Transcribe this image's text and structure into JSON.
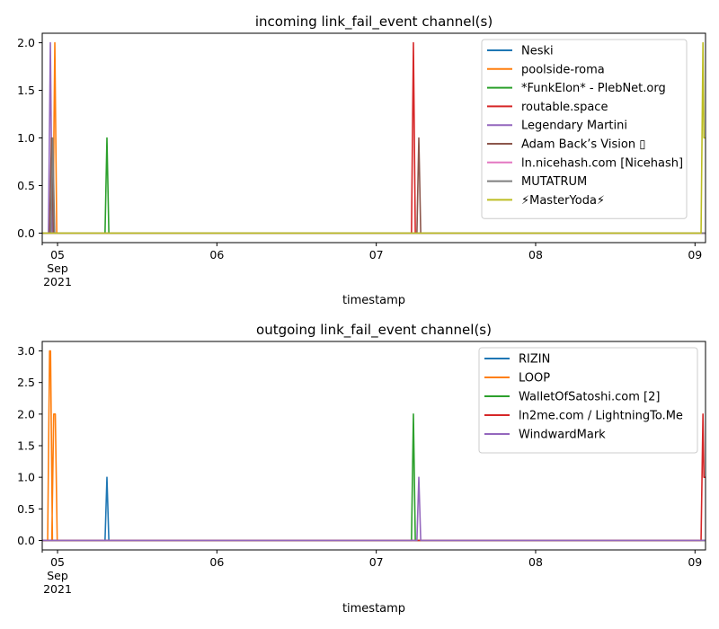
{
  "chart_data": [
    {
      "type": "line",
      "title": "incoming link_fail_event channel(s)",
      "xlabel": "timestamp",
      "ylabel": "",
      "xlim": [
        4.904,
        9.066
      ],
      "ylim": [
        -0.1,
        2.1
      ],
      "yticks": [
        "0.0",
        "0.5",
        "1.0",
        "1.5",
        "2.0"
      ],
      "ytick_values": [
        0,
        0.5,
        1.0,
        1.5,
        2.0
      ],
      "xticks": [
        {
          "value": 5,
          "label": "05",
          "sub1": "Sep",
          "sub2": "2021"
        },
        {
          "value": 6,
          "label": "06"
        },
        {
          "value": 7,
          "label": "07"
        },
        {
          "value": 8,
          "label": "08"
        },
        {
          "value": 9,
          "label": "09"
        }
      ],
      "legend_position": "top-right",
      "series": [
        {
          "name": "Neski",
          "color": "#1f77b4",
          "spikes": []
        },
        {
          "name": "poolside-roma",
          "color": "#ff7f0e",
          "spikes": [
            {
              "x": 4.983,
              "y": 2
            }
          ]
        },
        {
          "name": "*FunkElon* - PlebNet.org",
          "color": "#2ca02c",
          "spikes": [
            {
              "x": 5.31,
              "y": 1
            }
          ]
        },
        {
          "name": "routable.space",
          "color": "#d62728",
          "spikes": [
            {
              "x": 7.233,
              "y": 2
            }
          ]
        },
        {
          "name": "Legendary Martini",
          "color": "#9467bd",
          "spikes": [
            {
              "x": 4.955,
              "y": 2
            }
          ]
        },
        {
          "name": "Adam Back’s Vision ▯",
          "color": "#8c564b",
          "spikes": [
            {
              "x": 4.962,
              "y": 1
            },
            {
              "x": 7.267,
              "y": 1
            }
          ]
        },
        {
          "name": "ln.nicehash.com [Nicehash]",
          "color": "#e377c2",
          "spikes": []
        },
        {
          "name": "MUTATRUM",
          "color": "#7f7f7f",
          "spikes": [
            {
              "x": 4.97,
              "y": 1
            }
          ]
        },
        {
          "name": "⚡MasterYoda⚡",
          "color": "#bcbd22",
          "spikes": [
            {
              "x": 9.05,
              "y": 2,
              "tail": 1
            }
          ]
        }
      ]
    },
    {
      "type": "line",
      "title": "outgoing link_fail_event channel(s)",
      "xlabel": "timestamp",
      "ylabel": "",
      "xlim": [
        4.904,
        9.066
      ],
      "ylim": [
        -0.15,
        3.15
      ],
      "yticks": [
        "0.0",
        "0.5",
        "1.0",
        "1.5",
        "2.0",
        "2.5",
        "3.0"
      ],
      "ytick_values": [
        0,
        0.5,
        1.0,
        1.5,
        2.0,
        2.5,
        3.0
      ],
      "xticks": [
        {
          "value": 5,
          "label": "05",
          "sub1": "Sep",
          "sub2": "2021"
        },
        {
          "value": 6,
          "label": "06"
        },
        {
          "value": 7,
          "label": "07"
        },
        {
          "value": 8,
          "label": "08"
        },
        {
          "value": 9,
          "label": "09"
        }
      ],
      "legend_position": "top-right",
      "series": [
        {
          "name": "RIZIN",
          "color": "#1f77b4",
          "spikes": [
            {
              "x": 5.31,
              "y": 1
            }
          ]
        },
        {
          "name": "LOOP",
          "color": "#ff7f0e",
          "spikes": [
            {
              "x": 4.95,
              "y": 3,
              "plateau": 0.006
            },
            {
              "x": 4.976,
              "y": 2,
              "plateau": 0.01
            }
          ]
        },
        {
          "name": "WalletOfSatoshi.com [2]",
          "color": "#2ca02c",
          "spikes": [
            {
              "x": 7.233,
              "y": 2
            }
          ]
        },
        {
          "name": "ln2me.com / LightningTo.Me",
          "color": "#d62728",
          "spikes": [
            {
              "x": 9.05,
              "y": 2,
              "tail": 1
            }
          ]
        },
        {
          "name": "WindwardMark",
          "color": "#9467bd",
          "spikes": [
            {
              "x": 7.267,
              "y": 1
            }
          ]
        }
      ]
    }
  ]
}
